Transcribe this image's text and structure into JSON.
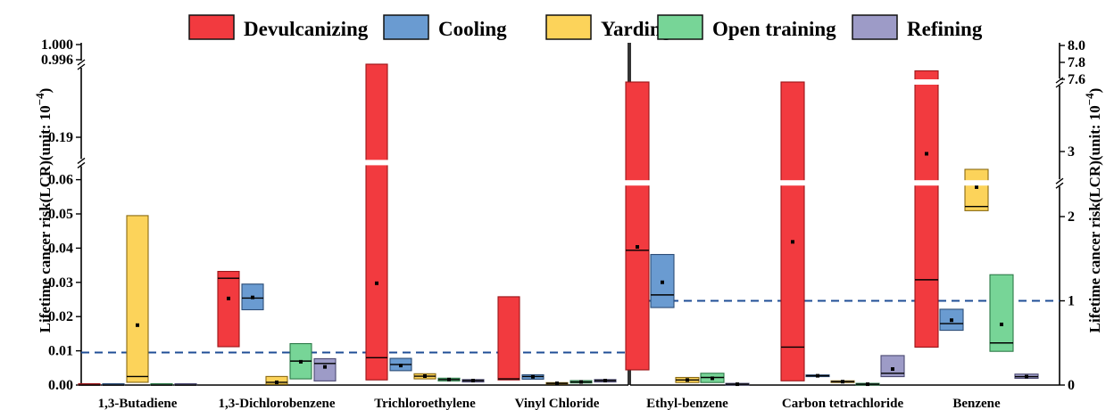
{
  "chart_data": {
    "type": "box",
    "legend": {
      "placement": "top",
      "entries": [
        {
          "name": "Devulcanizing",
          "color": "#f23a3f"
        },
        {
          "name": "Cooling",
          "color": "#6a9bd1"
        },
        {
          "name": "Yarding",
          "color": "#fcd35a"
        },
        {
          "name": "Open training",
          "color": "#77d597"
        },
        {
          "name": "Refining",
          "color": "#9d9bc7"
        }
      ]
    },
    "left_panel": {
      "ylabel": "Lifetime cancer risk(LCR)(unit: 10",
      "ylabel_exp": "−4",
      "ylabel_close": ")",
      "yticks": [
        "0.00",
        "0.01",
        "0.02",
        "0.03",
        "0.04",
        "0.05",
        "0.06",
        "0.19",
        "0.996",
        "1.000"
      ],
      "axis_breaks": [
        0.065,
        0.2
      ],
      "threshold": 0.0095,
      "categories": [
        "1,3-Butadiene",
        "1,3-Dichlorobenzene",
        "Trichloroethylene",
        "Vinyl Chloride"
      ],
      "boxes": [
        {
          "category": "1,3-Butadiene",
          "series": "Devulcanizing",
          "low": 0,
          "median": 0,
          "high": 0,
          "mean": null
        },
        {
          "category": "1,3-Butadiene",
          "series": "Cooling",
          "low": 0,
          "median": 0,
          "high": 0,
          "mean": null
        },
        {
          "category": "1,3-Butadiene",
          "series": "Yarding",
          "low": 0.0008,
          "median": 0.0025,
          "high": 0.0495,
          "mean": 0.0175
        },
        {
          "category": "1,3-Butadiene",
          "series": "Open training",
          "low": 0,
          "median": 0,
          "high": 0,
          "mean": null
        },
        {
          "category": "1,3-Butadiene",
          "series": "Refining",
          "low": 0,
          "median": 0,
          "high": 0,
          "mean": null
        },
        {
          "category": "1,3-Dichlorobenzene",
          "series": "Devulcanizing",
          "low": 0.0112,
          "median": 0.0312,
          "high": 0.0332,
          "mean": 0.0253
        },
        {
          "category": "1,3-Dichlorobenzene",
          "series": "Cooling",
          "low": 0.022,
          "median": 0.0254,
          "high": 0.0295,
          "mean": 0.0256
        },
        {
          "category": "1,3-Dichlorobenzene",
          "series": "Yarding",
          "low": 0.0002,
          "median": 0.0008,
          "high": 0.0025,
          "mean": 0.0008
        },
        {
          "category": "1,3-Dichlorobenzene",
          "series": "Open training",
          "low": 0.0018,
          "median": 0.007,
          "high": 0.0121,
          "mean": 0.0068
        },
        {
          "category": "1,3-Dichlorobenzene",
          "series": "Refining",
          "low": 0.0012,
          "median": 0.0063,
          "high": 0.0077,
          "mean": 0.0053
        },
        {
          "category": "Trichloroethylene",
          "series": "Devulcanizing",
          "low": 0.0015,
          "median": 0.008,
          "high": 0.245,
          "mean": 0.148
        },
        {
          "category": "Trichloroethylene",
          "series": "Cooling",
          "low": 0.0042,
          "median": 0.006,
          "high": 0.0078,
          "mean": 0.0057
        },
        {
          "category": "Trichloroethylene",
          "series": "Yarding",
          "low": 0.0018,
          "median": 0.0026,
          "high": 0.0033,
          "mean": 0.0026
        },
        {
          "category": "Trichloroethylene",
          "series": "Open training",
          "low": 0.0012,
          "median": 0.0016,
          "high": 0.002,
          "mean": 0.0016
        },
        {
          "category": "Trichloroethylene",
          "series": "Refining",
          "low": 0.0009,
          "median": 0.0013,
          "high": 0.0016,
          "mean": 0.0013
        },
        {
          "category": "Vinyl Chloride",
          "series": "Devulcanizing",
          "low": 0.0015,
          "median": 0.0018,
          "high": 0.0258,
          "mean": null
        },
        {
          "category": "Vinyl Chloride",
          "series": "Cooling",
          "low": 0.0017,
          "median": 0.0025,
          "high": 0.003,
          "mean": 0.0024
        },
        {
          "category": "Vinyl Chloride",
          "series": "Yarding",
          "low": 0.0003,
          "median": 0.0005,
          "high": 0.0007,
          "mean": 0.0005
        },
        {
          "category": "Vinyl Chloride",
          "series": "Open training",
          "low": 0.0006,
          "median": 0.0009,
          "high": 0.0013,
          "mean": 0.0009
        },
        {
          "category": "Vinyl Chloride",
          "series": "Refining",
          "low": 0.0009,
          "median": 0.0013,
          "high": 0.0016,
          "mean": 0.0013
        }
      ]
    },
    "right_panel": {
      "ylabel": "Lifetime cancer risk(LCR)(unit: 10",
      "ylabel_exp": "−4",
      "ylabel_close": ")",
      "yticks": [
        "0",
        "1",
        "2",
        "3",
        "7.6",
        "7.8",
        "8.0"
      ],
      "axis_breaks": [
        2.4,
        3.5
      ],
      "threshold": 1.0,
      "categories": [
        "Ethyl-benzene",
        "Carbon tetrachloride",
        "Benzene"
      ],
      "boxes": [
        {
          "category": "Ethyl-benzene",
          "series": "Devulcanizing",
          "low": 0.18,
          "median": 1.6,
          "high": 5.0,
          "mean": 1.64
        },
        {
          "category": "Ethyl-benzene",
          "series": "Cooling",
          "low": 0.92,
          "median": 1.07,
          "high": 1.55,
          "mean": 1.22
        },
        {
          "category": "Ethyl-benzene",
          "series": "Yarding",
          "low": 0.03,
          "median": 0.06,
          "high": 0.09,
          "mean": 0.06
        },
        {
          "category": "Ethyl-benzene",
          "series": "Open training",
          "low": 0.03,
          "median": 0.09,
          "high": 0.14,
          "mean": 0.08
        },
        {
          "category": "Ethyl-benzene",
          "series": "Refining",
          "low": 0.0,
          "median": 0.01,
          "high": 0.02,
          "mean": 0.01
        },
        {
          "category": "Carbon tetrachloride",
          "series": "Devulcanizing",
          "low": 0.05,
          "median": 0.45,
          "high": 6.0,
          "mean": 1.7
        },
        {
          "category": "Carbon tetrachloride",
          "series": "Cooling",
          "low": 0.1,
          "median": 0.11,
          "high": 0.12,
          "mean": 0.11
        },
        {
          "category": "Carbon tetrachloride",
          "series": "Yarding",
          "low": 0.03,
          "median": 0.04,
          "high": 0.05,
          "mean": 0.04
        },
        {
          "category": "Carbon tetrachloride",
          "series": "Open training",
          "low": 0.0,
          "median": 0.01,
          "high": 0.02,
          "mean": 0.01
        },
        {
          "category": "Carbon tetrachloride",
          "series": "Refining",
          "low": 0.1,
          "median": 0.14,
          "high": 0.35,
          "mean": 0.19
        },
        {
          "category": "Benzene",
          "series": "Devulcanizing",
          "low": 0.45,
          "median": 1.25,
          "high": 7.7,
          "mean": 2.95
        },
        {
          "category": "Benzene",
          "series": "Cooling",
          "low": 0.65,
          "median": 0.73,
          "high": 0.9,
          "mean": 0.77
        },
        {
          "category": "Benzene",
          "series": "Yarding",
          "low": 2.07,
          "median": 2.12,
          "high": 2.6,
          "mean": 2.35
        },
        {
          "category": "Benzene",
          "series": "Open training",
          "low": 0.4,
          "median": 0.5,
          "high": 1.31,
          "mean": 0.72
        },
        {
          "category": "Benzene",
          "series": "Refining",
          "low": 0.08,
          "median": 0.1,
          "high": 0.13,
          "mean": 0.1
        }
      ]
    }
  }
}
